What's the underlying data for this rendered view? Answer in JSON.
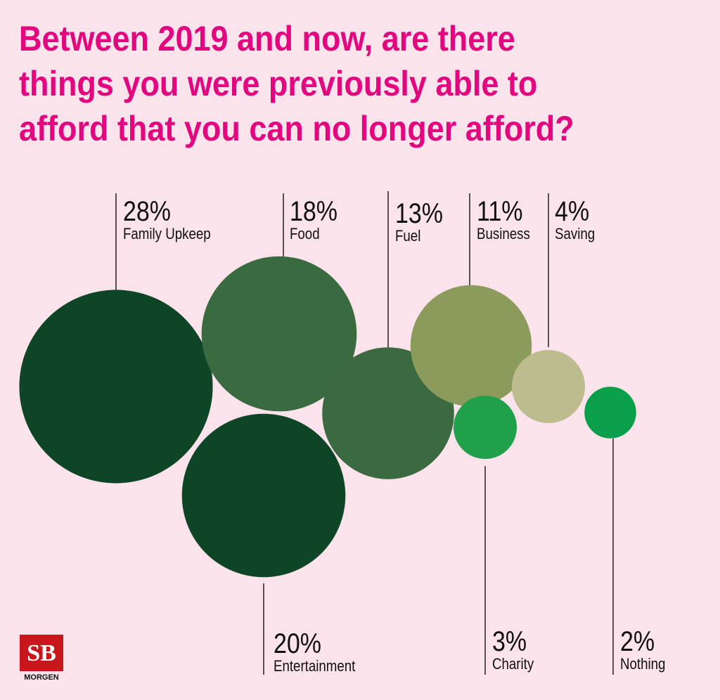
{
  "chart_data": {
    "type": "bubble",
    "title": [
      "Between 2019 and now, are there",
      "things you were previously able to",
      "afford that you can no longer afford?"
    ],
    "categories": [
      "Family Upkeep",
      "Entertainment",
      "Food",
      "Fuel",
      "Business",
      "Charity",
      "Saving",
      "Nothing"
    ],
    "values": [
      28,
      20,
      18,
      13,
      11,
      3,
      4,
      2
    ],
    "value_labels": [
      "28%",
      "20%",
      "18%",
      "13%",
      "11%",
      "3%",
      "4%",
      "2%"
    ],
    "colors": [
      "#0e4526",
      "#0e4526",
      "#3a6a40",
      "#3b6a41",
      "#8b9b5c",
      "#20a04a",
      "#bdbc8e",
      "#0aa04b"
    ]
  },
  "logo": {
    "text": "SB",
    "subtitle": "MORGEN"
  }
}
